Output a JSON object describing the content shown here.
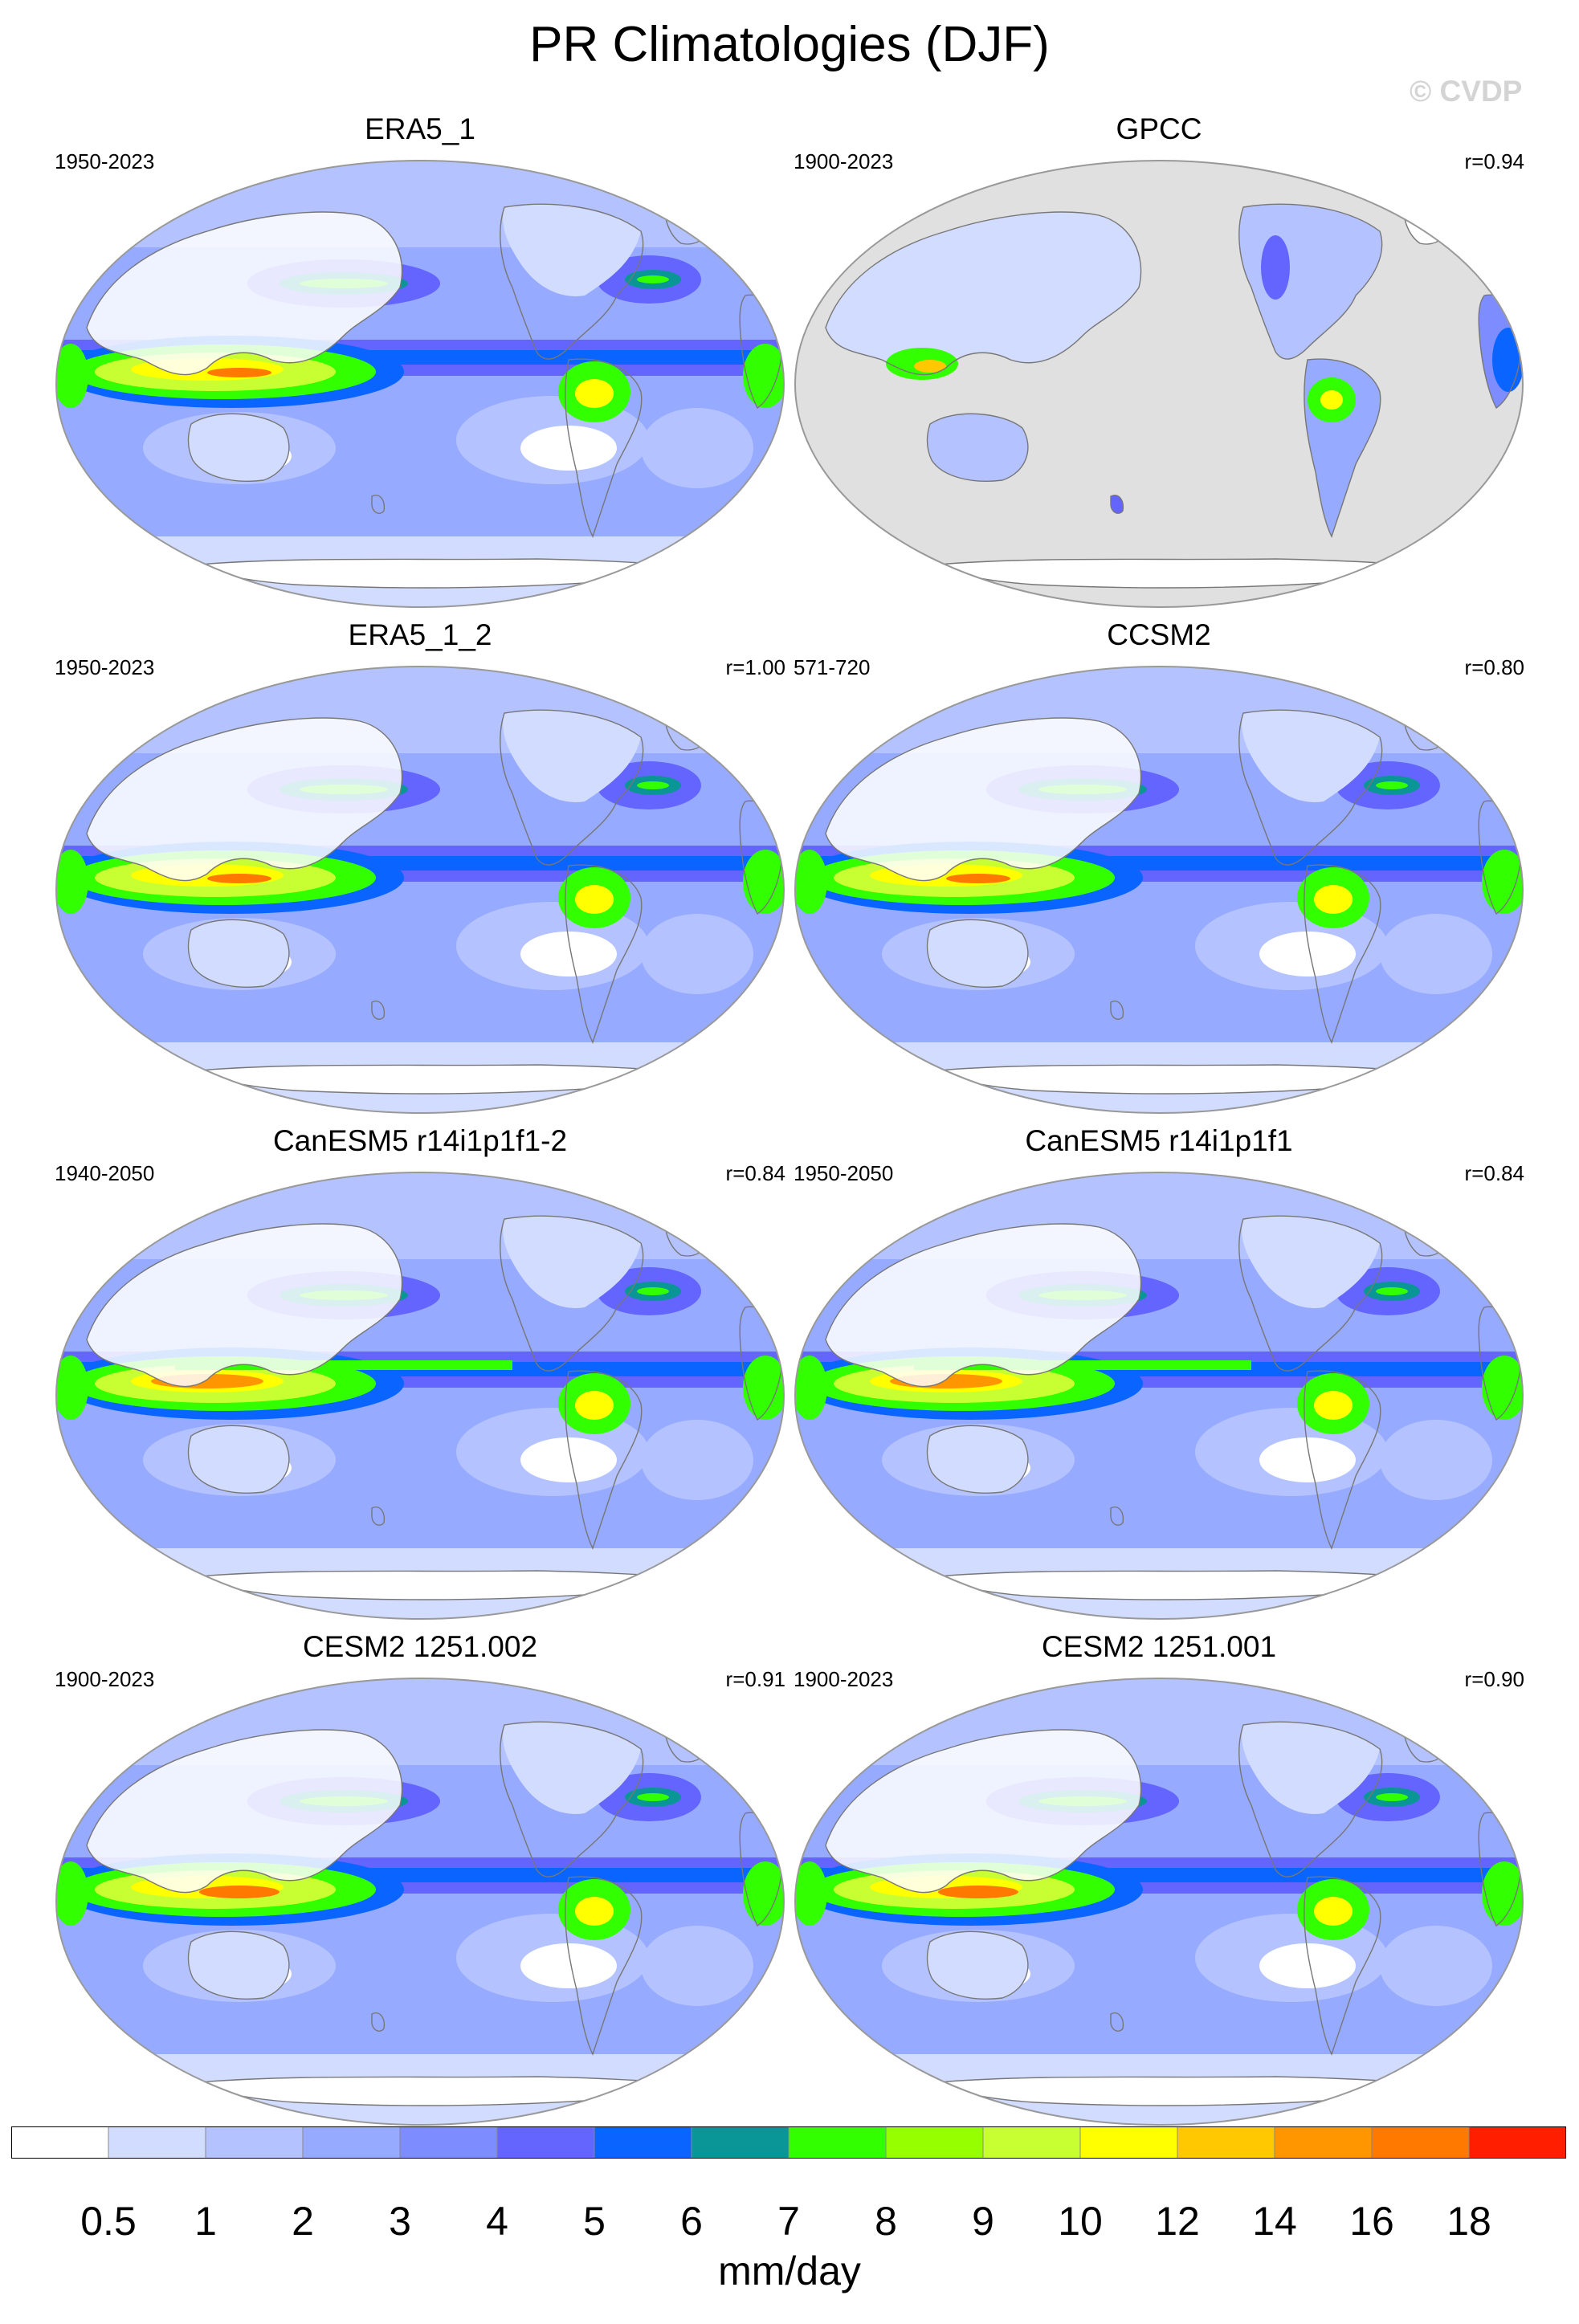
{
  "title": "PR Climatologies (DJF)",
  "watermark": "© CVDP",
  "panels": [
    {
      "title": "ERA5_1",
      "years": "1950-2023",
      "corr": "",
      "land_only": false,
      "variant": "era5"
    },
    {
      "title": "GPCC",
      "years": "1900-2023",
      "corr": "r=0.94",
      "land_only": true,
      "variant": "era5"
    },
    {
      "title": "ERA5_1_2",
      "years": "1950-2023",
      "corr": "r=1.00",
      "land_only": false,
      "variant": "era5"
    },
    {
      "title": "CCSM2",
      "years": "571-720",
      "corr": "r=0.80",
      "land_only": false,
      "variant": "ccsm"
    },
    {
      "title": "CanESM5 r14i1p1f1-2",
      "years": "1940-2050",
      "corr": "r=0.84",
      "land_only": false,
      "variant": "canesm"
    },
    {
      "title": "CanESM5 r14i1p1f1",
      "years": "1950-2050",
      "corr": "r=0.84",
      "land_only": false,
      "variant": "canesm"
    },
    {
      "title": "CESM2 1251.002",
      "years": "1900-2023",
      "corr": "r=0.91",
      "land_only": false,
      "variant": "cesm"
    },
    {
      "title": "CESM2 1251.001",
      "years": "1900-2023",
      "corr": "r=0.90",
      "land_only": false,
      "variant": "cesm"
    }
  ],
  "colorbar": {
    "units": "mm/day",
    "labels": [
      "0.5",
      "1",
      "2",
      "3",
      "4",
      "5",
      "6",
      "7",
      "8",
      "9",
      "10",
      "12",
      "14",
      "16",
      "18"
    ],
    "colors": [
      "#ffffff",
      "#d2dcff",
      "#b4c3ff",
      "#96aaff",
      "#7d8cff",
      "#6464ff",
      "#0a64ff",
      "#0a9696",
      "#32ff00",
      "#96ff00",
      "#c8ff32",
      "#ffff00",
      "#ffc800",
      "#ff9600",
      "#ff7800",
      "#ff1e00"
    ]
  },
  "palette": {
    "missing": "#e0e0e0",
    "coastline": "#777777",
    "frame": "#999999"
  }
}
